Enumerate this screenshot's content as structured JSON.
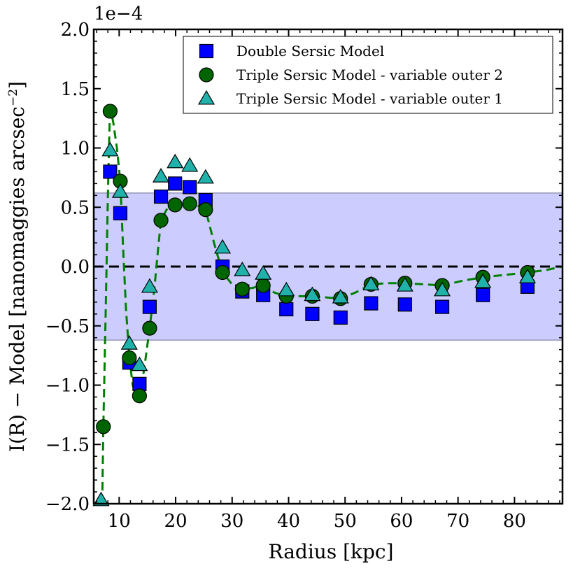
{
  "chart_data": {
    "type": "scatter",
    "title": "",
    "xlabel": "Radius [kpc]",
    "ylabel": "I(R) − Model [nanomaggies arcsec",
    "ylabel_exponent": "−2",
    "ylabel_close": "]",
    "offset_text": "1e−4",
    "xlim": [
      5.5,
      88.5
    ],
    "ylim": [
      -2.0,
      2.0
    ],
    "x_ticks": [
      10,
      20,
      30,
      40,
      50,
      60,
      70,
      80
    ],
    "x_tick_labels": [
      "10",
      "20",
      "30",
      "40",
      "50",
      "60",
      "70",
      "80"
    ],
    "y_ticks": [
      -2.0,
      -1.5,
      -1.0,
      -0.5,
      0.0,
      0.5,
      1.0,
      1.5,
      2.0
    ],
    "y_tick_labels": [
      "−2.0",
      "−1.5",
      "−1.0",
      "−0.5",
      "0.0",
      "0.5",
      "1.0",
      "1.5",
      "2.0"
    ],
    "band": {
      "lower": -0.62,
      "upper": 0.62,
      "color": "#ccccff",
      "edge": "#a8a8c8"
    },
    "zero_line": {
      "y": 0.0,
      "color": "#000000"
    },
    "legend_position": "top-right",
    "series": [
      {
        "name": "Double Sersic Model",
        "marker": "square",
        "color": "#0000ff",
        "x": [
          8.4,
          10.2,
          11.8,
          13.6,
          15.4,
          17.4,
          19.9,
          22.5,
          25.3,
          28.3,
          31.8,
          35.5,
          39.6,
          44.2,
          49.2,
          54.6,
          60.6,
          67.2,
          74.4,
          82.3
        ],
        "y": [
          0.8,
          0.45,
          -0.81,
          -0.99,
          -0.34,
          0.59,
          0.7,
          0.67,
          0.56,
          0.0,
          -0.21,
          -0.24,
          -0.36,
          -0.4,
          -0.43,
          -0.31,
          -0.32,
          -0.34,
          -0.24,
          -0.17
        ]
      },
      {
        "name": "Triple Sersic Model - variable outer 2",
        "marker": "circle",
        "color": "#006400",
        "x": [
          7.2,
          8.4,
          10.2,
          11.8,
          13.6,
          15.4,
          17.4,
          19.9,
          22.5,
          25.3,
          28.3,
          31.8,
          35.5,
          39.6,
          44.2,
          49.2,
          54.6,
          60.6,
          67.2,
          74.4,
          82.3
        ],
        "y": [
          -1.35,
          1.31,
          0.72,
          -0.77,
          -1.09,
          -0.52,
          0.39,
          0.52,
          0.53,
          0.48,
          -0.05,
          -0.19,
          -0.16,
          -0.25,
          -0.25,
          -0.27,
          -0.15,
          -0.14,
          -0.16,
          -0.09,
          -0.05
        ]
      },
      {
        "name": "Triple Sersic Model - variable outer 1",
        "marker": "triangle",
        "color": "#20b2aa",
        "x": [
          6.8,
          8.4,
          10.2,
          11.8,
          13.6,
          15.4,
          17.4,
          19.9,
          22.5,
          25.3,
          28.3,
          31.8,
          35.5,
          39.6,
          44.2,
          49.2,
          54.6,
          60.6,
          67.2,
          74.4,
          82.3
        ],
        "y": [
          -1.97,
          0.98,
          0.63,
          -0.65,
          -0.83,
          -0.17,
          0.76,
          0.88,
          0.85,
          0.75,
          0.16,
          -0.03,
          -0.06,
          -0.2,
          -0.24,
          -0.26,
          -0.15,
          -0.16,
          -0.2,
          -0.13,
          -0.09
        ]
      }
    ],
    "model_curve": {
      "name": "variable outer 2 model curve",
      "style": "dashed",
      "color": "#008000",
      "x": [
        7.0,
        7.2,
        7.6,
        8.0,
        8.3,
        8.6,
        9.0,
        9.6,
        10.2,
        10.7,
        11.2,
        11.8,
        12.4,
        13.0,
        13.6,
        14.0,
        14.6,
        15.4,
        16.2,
        17.0,
        17.4,
        18.4,
        19.9,
        21.2,
        22.5,
        24.0,
        25.3,
        26.8,
        28.3,
        30.0,
        31.8,
        33.6,
        35.5,
        37.5,
        39.6,
        42.0,
        44.2,
        46.7,
        49.2,
        51.8,
        54.6,
        57.5,
        60.6,
        64.0,
        67.2,
        70.8,
        74.4,
        78.3,
        82.3,
        85.5,
        88.5
      ],
      "y": [
        -2.0,
        -1.35,
        -0.4,
        0.6,
        1.2,
        1.31,
        1.2,
        1.0,
        0.72,
        0.15,
        -0.35,
        -0.77,
        -1.0,
        -1.09,
        -1.09,
        -1.0,
        -0.8,
        -0.52,
        -0.2,
        0.2,
        0.39,
        0.48,
        0.52,
        0.53,
        0.53,
        0.51,
        0.48,
        0.2,
        -0.05,
        -0.15,
        -0.19,
        -0.18,
        -0.16,
        -0.22,
        -0.25,
        -0.25,
        -0.25,
        -0.26,
        -0.27,
        -0.22,
        -0.15,
        -0.14,
        -0.14,
        -0.15,
        -0.16,
        -0.12,
        -0.09,
        -0.07,
        -0.05,
        -0.03,
        0.0
      ]
    }
  }
}
